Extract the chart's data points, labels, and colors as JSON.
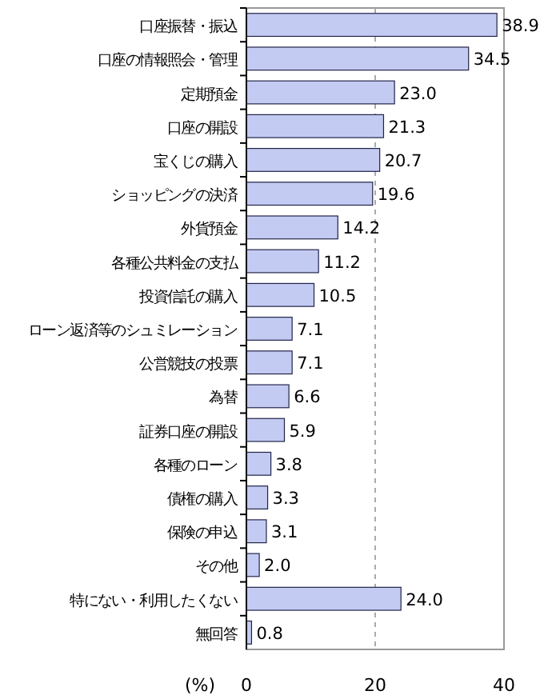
{
  "chart_data": {
    "type": "bar",
    "orientation": "horizontal",
    "xlabel": "(%)",
    "categories": [
      "口座振替・振込",
      "口座の情報照会・管理",
      "定期預金",
      "口座の開設",
      "宝くじの購入",
      "ショッピングの決済",
      "外貨預金",
      "各種公共料金の支払",
      "投資信託の購入",
      "ローン返済等のシュミレーション",
      "公営競技の投票",
      "為替",
      "証券口座の開設",
      "各種のローン",
      "債権の購入",
      "保険の申込",
      "その他",
      "特にない・利用したくない",
      "無回答"
    ],
    "values": [
      38.9,
      34.5,
      23.0,
      21.3,
      20.7,
      19.6,
      14.2,
      11.2,
      10.5,
      7.1,
      7.1,
      6.6,
      5.9,
      3.8,
      3.3,
      3.1,
      2.0,
      24.0,
      0.8
    ],
    "value_labels": [
      "38.9",
      "34.5",
      "23.0",
      "21.3",
      "20.7",
      "19.6",
      "14.2",
      "11.2",
      "10.5",
      "7.1",
      "7.1",
      "6.6",
      "5.9",
      "3.8",
      "3.3",
      "3.1",
      "2.0",
      "24.0",
      "0.8"
    ],
    "color": "#c3cbf2",
    "xlim": [
      0,
      40
    ],
    "xticks": [
      0,
      20,
      40
    ],
    "grid": "x"
  }
}
